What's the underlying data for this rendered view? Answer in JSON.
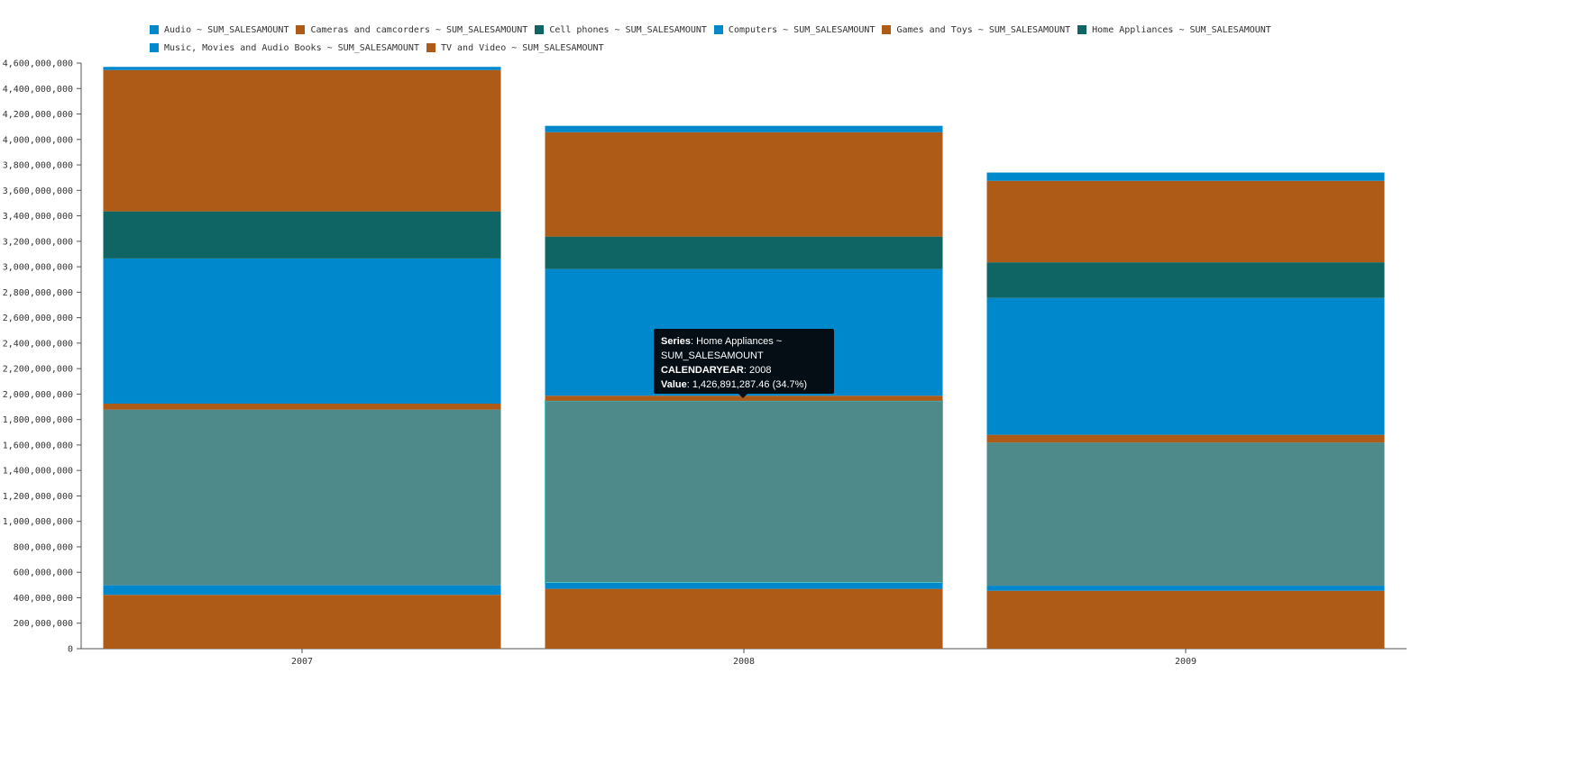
{
  "chart_data": {
    "type": "bar",
    "stacked": true,
    "categories": [
      "2007",
      "2008",
      "2009"
    ],
    "ylim": [
      0,
      4600000000
    ],
    "y_ticks": [
      0,
      200000000,
      400000000,
      600000000,
      800000000,
      1000000000,
      1200000000,
      1400000000,
      1600000000,
      1800000000,
      2000000000,
      2200000000,
      2400000000,
      2600000000,
      2800000000,
      3000000000,
      3200000000,
      3400000000,
      3600000000,
      3800000000,
      4000000000,
      4200000000,
      4400000000,
      4600000000
    ],
    "y_tick_labels": [
      "0",
      "200,000,000",
      "400,000,000",
      "600,000,000",
      "800,000,000",
      "1,000,000,000",
      "1,200,000,000",
      "1,400,000,000",
      "1,600,000,000",
      "1,800,000,000",
      "2,000,000,000",
      "2,200,000,000",
      "2,400,000,000",
      "2,600,000,000",
      "2,800,000,000",
      "3,000,000,000",
      "3,200,000,000",
      "3,400,000,000",
      "3,600,000,000",
      "3,800,000,000",
      "4,000,000,000",
      "4,200,000,000",
      "4,400,000,000",
      "4,600,000,000"
    ],
    "legend_position": "top",
    "series": [
      {
        "name": "TV and Video ~ SUM_SALESAMOUNT",
        "color": "#ad5b16",
        "values": [
          423000000,
          470000000,
          455000000
        ]
      },
      {
        "name": "Music, Movies and Audio Books ~ SUM_SALESAMOUNT",
        "color": "#0088cc",
        "values": [
          75000000,
          50000000,
          40000000
        ]
      },
      {
        "name": "Home Appliances ~ SUM_SALESAMOUNT",
        "color": "#4e8a8a",
        "values": [
          1380000000,
          1426891287.46,
          1125000000
        ]
      },
      {
        "name": "Games and Toys ~ SUM_SALESAMOUNT",
        "color": "#ad5b16",
        "values": [
          47000000,
          40000000,
          60000000
        ]
      },
      {
        "name": "Computers ~ SUM_SALESAMOUNT",
        "color": "#0088cc",
        "values": [
          1140000000,
          995000000,
          1075000000
        ]
      },
      {
        "name": "Cell phones ~ SUM_SALESAMOUNT",
        "color": "#0e6564",
        "values": [
          370000000,
          255000000,
          280000000
        ]
      },
      {
        "name": "Cameras and camcorders ~ SUM_SALESAMOUNT",
        "color": "#ad5b16",
        "values": [
          1110000000,
          820000000,
          640000000
        ]
      },
      {
        "name": "Audio ~ SUM_SALESAMOUNT",
        "color": "#0088cc",
        "values": [
          25000000,
          50000000,
          65000000
        ]
      }
    ]
  },
  "legend": [
    {
      "label": "Audio ~ SUM_SALESAMOUNT",
      "color": "#0088cc"
    },
    {
      "label": "Cameras and camcorders ~ SUM_SALESAMOUNT",
      "color": "#ad5b16"
    },
    {
      "label": "Cell phones ~ SUM_SALESAMOUNT",
      "color": "#0e6564"
    },
    {
      "label": "Computers ~ SUM_SALESAMOUNT",
      "color": "#0088cc"
    },
    {
      "label": "Games and Toys ~ SUM_SALESAMOUNT",
      "color": "#ad5b16"
    },
    {
      "label": "Home Appliances ~ SUM_SALESAMOUNT",
      "color": "#0e6564"
    },
    {
      "label": "Music, Movies and Audio Books ~ SUM_SALESAMOUNT",
      "color": "#0088cc"
    },
    {
      "label": "TV and Video ~ SUM_SALESAMOUNT",
      "color": "#ad5b16"
    }
  ],
  "tooltip": {
    "series_key": "Series",
    "series_value": "Home Appliances ~ SUM_SALESAMOUNT",
    "year_key": "CALENDARYEAR",
    "year_value": "2008",
    "value_key": "Value",
    "value_value": "1,426,891,287.46 (34.7%)",
    "highlight_color": "#4fc3c3"
  }
}
